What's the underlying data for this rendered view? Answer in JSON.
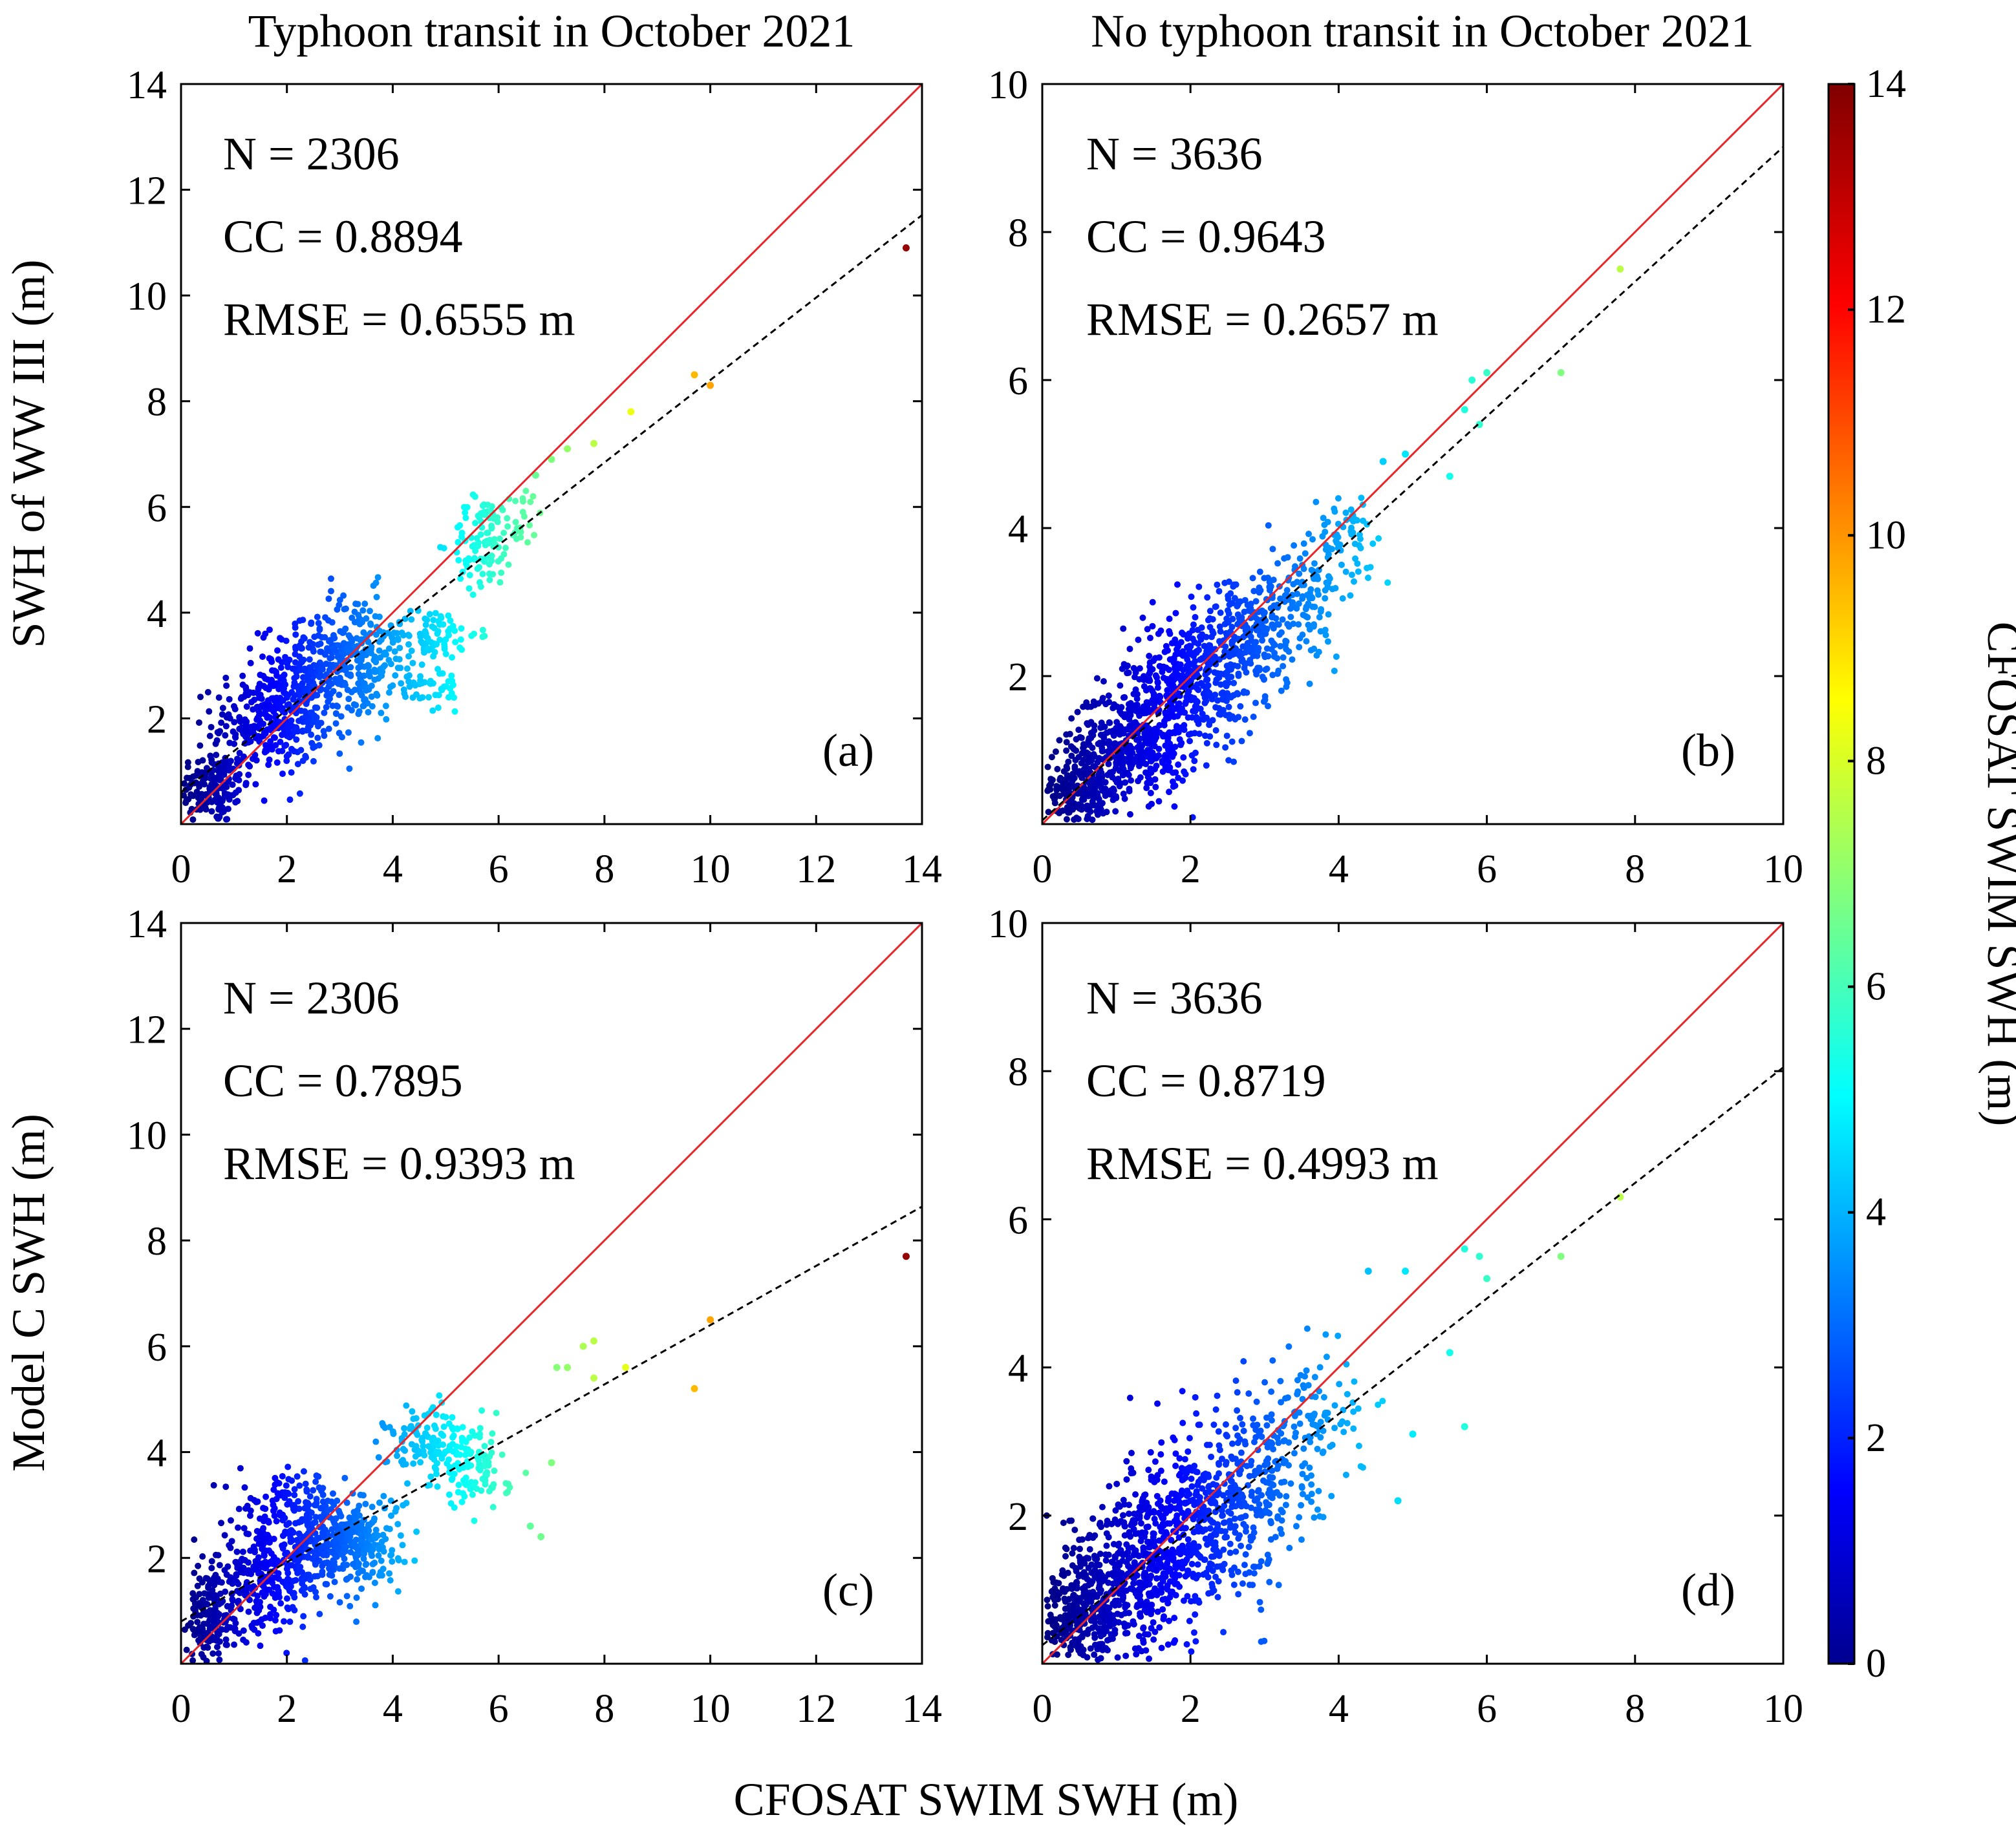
{
  "figure": {
    "xlabel": "CFOSAT SWIM SWH (m)",
    "row_labels": [
      "SWH of  WW III (m)",
      "Model C  SWH (m)"
    ],
    "column_titles": [
      "Typhoon transit in October 2021",
      "No typhoon transit in October 2021"
    ],
    "colorbar": {
      "label": "CFOSAT SWIM SWH (m)",
      "ticks": [
        0,
        2,
        4,
        6,
        8,
        10,
        12,
        14
      ],
      "range": [
        0,
        14
      ],
      "colormap": "jet"
    },
    "identity_line_color": "#e8262a",
    "fit_line_color": "#000000"
  },
  "chart_data": [
    {
      "type": "scatter",
      "panel": "(a)",
      "title": "Typhoon transit in October 2021",
      "ylabel": "SWH of  WW III (m)",
      "xlabel": "CFOSAT SWIM SWH (m)",
      "xlim": [
        0,
        14
      ],
      "ylim": [
        0,
        14
      ],
      "xticks": [
        0,
        2,
        4,
        6,
        8,
        10,
        12,
        14
      ],
      "yticks": [
        2,
        4,
        6,
        8,
        10,
        12,
        14
      ],
      "stats": {
        "n": "N = 2306",
        "cc": "CC = 0.8894",
        "rmse": "RMSE = 0.6555 m"
      },
      "fit": {
        "slope": 0.78,
        "intercept": 0.6
      },
      "clusters": [
        {
          "cx": 0.6,
          "cy": 0.7,
          "sx": 0.35,
          "sy": 0.35,
          "n": 160
        },
        {
          "cx": 1.6,
          "cy": 1.9,
          "sx": 0.5,
          "sy": 0.5,
          "n": 260
        },
        {
          "cx": 2.5,
          "cy": 2.7,
          "sx": 0.5,
          "sy": 0.55,
          "n": 280
        },
        {
          "cx": 3.3,
          "cy": 3.2,
          "sx": 0.45,
          "sy": 0.6,
          "n": 180
        },
        {
          "cx": 4.7,
          "cy": 3.6,
          "sx": 0.45,
          "sy": 0.25,
          "n": 90
        },
        {
          "cx": 4.6,
          "cy": 2.6,
          "sx": 0.4,
          "sy": 0.25,
          "n": 55
        },
        {
          "cx": 5.7,
          "cy": 5.3,
          "sx": 0.3,
          "sy": 0.45,
          "n": 90
        },
        {
          "cx": 6.3,
          "cy": 5.8,
          "sx": 0.3,
          "sy": 0.3,
          "n": 30
        }
      ],
      "points": [
        {
          "x": 6.7,
          "y": 6.6
        },
        {
          "x": 7.0,
          "y": 6.9
        },
        {
          "x": 7.3,
          "y": 7.1
        },
        {
          "x": 7.8,
          "y": 7.2
        },
        {
          "x": 8.5,
          "y": 7.8
        },
        {
          "x": 9.7,
          "y": 8.5
        },
        {
          "x": 10.0,
          "y": 8.3
        },
        {
          "x": 13.7,
          "y": 10.9
        }
      ]
    },
    {
      "type": "scatter",
      "panel": "(b)",
      "title": "No typhoon transit in October 2021",
      "ylabel": "",
      "xlabel": "CFOSAT SWIM SWH (m)",
      "xlim": [
        0,
        10
      ],
      "ylim": [
        0,
        10
      ],
      "xticks": [
        0,
        2,
        4,
        6,
        8,
        10
      ],
      "yticks": [
        2,
        4,
        6,
        8,
        10
      ],
      "stats": {
        "n": "N = 3636",
        "cc": "CC = 0.9643",
        "rmse": "RMSE = 0.2657 m"
      },
      "fit": {
        "slope": 0.91,
        "intercept": 0.05
      },
      "clusters": [
        {
          "cx": 0.5,
          "cy": 0.45,
          "sx": 0.3,
          "sy": 0.25,
          "n": 260
        },
        {
          "cx": 1.2,
          "cy": 1.1,
          "sx": 0.4,
          "sy": 0.35,
          "n": 400
        },
        {
          "cx": 2.0,
          "cy": 1.9,
          "sx": 0.45,
          "sy": 0.4,
          "n": 380
        },
        {
          "cx": 2.8,
          "cy": 2.6,
          "sx": 0.45,
          "sy": 0.4,
          "n": 250
        },
        {
          "cx": 3.6,
          "cy": 3.2,
          "sx": 0.35,
          "sy": 0.35,
          "n": 110
        },
        {
          "cx": 4.1,
          "cy": 4.0,
          "sx": 0.2,
          "sy": 0.2,
          "n": 40
        }
      ],
      "points": [
        {
          "x": 4.6,
          "y": 4.9
        },
        {
          "x": 4.9,
          "y": 5.0
        },
        {
          "x": 5.5,
          "y": 4.7
        },
        {
          "x": 5.7,
          "y": 5.6
        },
        {
          "x": 5.8,
          "y": 6.0
        },
        {
          "x": 6.0,
          "y": 6.1
        },
        {
          "x": 5.9,
          "y": 5.4
        },
        {
          "x": 7.0,
          "y": 6.1
        },
        {
          "x": 7.8,
          "y": 7.5
        }
      ]
    },
    {
      "type": "scatter",
      "panel": "(c)",
      "title": "",
      "ylabel": "Model C  SWH (m)",
      "xlabel": "CFOSAT SWIM SWH (m)",
      "xlim": [
        0,
        14
      ],
      "ylim": [
        0,
        14
      ],
      "xticks": [
        0,
        2,
        4,
        6,
        8,
        10,
        12,
        14
      ],
      "yticks": [
        2,
        4,
        6,
        8,
        10,
        12,
        14
      ],
      "stats": {
        "n": "N = 2306",
        "cc": "CC = 0.7895",
        "rmse": "RMSE = 0.9393 m"
      },
      "fit": {
        "slope": 0.56,
        "intercept": 0.8
      },
      "clusters": [
        {
          "cx": 0.6,
          "cy": 0.9,
          "sx": 0.35,
          "sy": 0.45,
          "n": 180
        },
        {
          "cx": 1.6,
          "cy": 1.6,
          "sx": 0.45,
          "sy": 0.45,
          "n": 250
        },
        {
          "cx": 2.1,
          "cy": 3.0,
          "sx": 0.5,
          "sy": 0.3,
          "n": 110
        },
        {
          "cx": 2.8,
          "cy": 2.2,
          "sx": 0.5,
          "sy": 0.4,
          "n": 260
        },
        {
          "cx": 3.4,
          "cy": 2.4,
          "sx": 0.4,
          "sy": 0.4,
          "n": 120
        },
        {
          "cx": 4.9,
          "cy": 4.1,
          "sx": 0.5,
          "sy": 0.4,
          "n": 160
        },
        {
          "cx": 5.6,
          "cy": 3.5,
          "sx": 0.3,
          "sy": 0.3,
          "n": 60
        }
      ],
      "points": [
        {
          "x": 6.6,
          "y": 2.6
        },
        {
          "x": 6.8,
          "y": 2.4
        },
        {
          "x": 7.0,
          "y": 3.8
        },
        {
          "x": 7.1,
          "y": 5.6
        },
        {
          "x": 7.3,
          "y": 5.6
        },
        {
          "x": 7.6,
          "y": 6.0
        },
        {
          "x": 7.8,
          "y": 6.1
        },
        {
          "x": 7.8,
          "y": 5.4
        },
        {
          "x": 8.4,
          "y": 5.6
        },
        {
          "x": 9.7,
          "y": 5.2
        },
        {
          "x": 10.0,
          "y": 6.5
        },
        {
          "x": 13.7,
          "y": 7.7
        }
      ]
    },
    {
      "type": "scatter",
      "panel": "(d)",
      "title": "",
      "ylabel": "",
      "xlabel": "CFOSAT SWIM SWH (m)",
      "xlim": [
        0,
        10
      ],
      "ylim": [
        0,
        10
      ],
      "xticks": [
        0,
        2,
        4,
        6,
        8,
        10
      ],
      "yticks": [
        2,
        4,
        6,
        8,
        10
      ],
      "stats": {
        "n": "N = 3636",
        "cc": "CC = 0.8719",
        "rmse": "RMSE = 0.4993 m"
      },
      "fit": {
        "slope": 0.78,
        "intercept": 0.25
      },
      "clusters": [
        {
          "cx": 0.5,
          "cy": 0.6,
          "sx": 0.3,
          "sy": 0.35,
          "n": 280
        },
        {
          "cx": 1.2,
          "cy": 1.2,
          "sx": 0.45,
          "sy": 0.5,
          "n": 400
        },
        {
          "cx": 2.0,
          "cy": 1.8,
          "sx": 0.5,
          "sy": 0.55,
          "n": 380
        },
        {
          "cx": 2.8,
          "cy": 2.4,
          "sx": 0.5,
          "sy": 0.55,
          "n": 240
        },
        {
          "cx": 3.6,
          "cy": 3.4,
          "sx": 0.4,
          "sy": 0.5,
          "n": 110
        }
      ],
      "points": [
        {
          "x": 4.4,
          "y": 5.3
        },
        {
          "x": 4.8,
          "y": 2.2
        },
        {
          "x": 4.9,
          "y": 5.3
        },
        {
          "x": 5.0,
          "y": 3.1
        },
        {
          "x": 5.5,
          "y": 4.2
        },
        {
          "x": 5.7,
          "y": 5.6
        },
        {
          "x": 5.7,
          "y": 3.2
        },
        {
          "x": 5.9,
          "y": 5.5
        },
        {
          "x": 6.0,
          "y": 5.2
        },
        {
          "x": 7.0,
          "y": 5.5
        },
        {
          "x": 7.8,
          "y": 6.3
        }
      ]
    }
  ]
}
